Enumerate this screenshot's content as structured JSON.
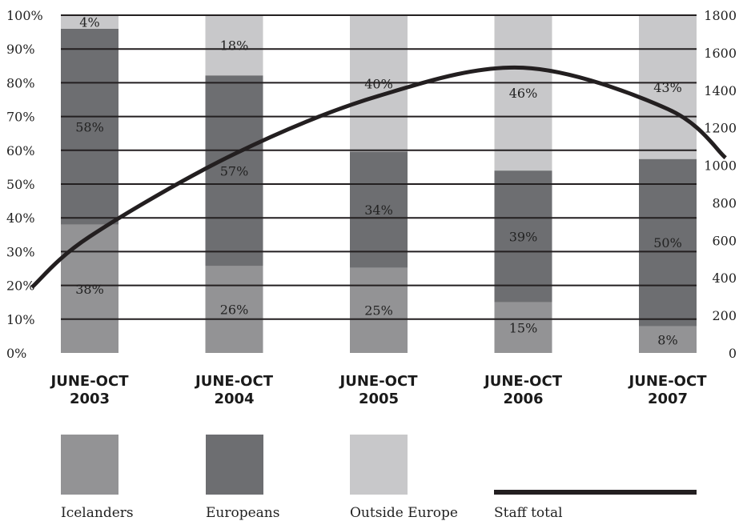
{
  "chart_data": {
    "type": "bar",
    "stacked": true,
    "percent_stacked": true,
    "categories": [
      [
        "JUNE-OCT",
        "2003"
      ],
      [
        "JUNE-OCT",
        "2004"
      ],
      [
        "JUNE-OCT",
        "2005"
      ],
      [
        "JUNE-OCT",
        "2006"
      ],
      [
        "JUNE-OCT",
        "2007"
      ]
    ],
    "series": [
      {
        "name": "Icelanders",
        "values": [
          38,
          26,
          25,
          15,
          8
        ],
        "labels": [
          "38%",
          "26%",
          "25%",
          "15%",
          "8%"
        ],
        "color": "#939395"
      },
      {
        "name": "Europeans",
        "values": [
          58,
          57,
          34,
          39,
          50
        ],
        "labels": [
          "58%",
          "57%",
          "34%",
          "39%",
          "50%"
        ],
        "color": "#6d6e71"
      },
      {
        "name": "Outside Europe",
        "values": [
          4,
          18,
          40,
          46,
          43
        ],
        "labels": [
          "4%",
          "18%",
          "40%",
          "46%",
          "43%"
        ],
        "color": "#c8c8ca"
      }
    ],
    "line_series": {
      "name": "Staff total",
      "axis": "right",
      "x": [
        -0.4,
        0,
        1,
        2,
        3,
        4,
        4.4
      ],
      "y": [
        350,
        620,
        1060,
        1370,
        1520,
        1300,
        1040
      ],
      "color": "#231f20"
    },
    "y_left": {
      "min": 0,
      "max": 100,
      "step": 10,
      "tick_labels": [
        "0%",
        "10%",
        "20%",
        "30%",
        "40%",
        "50%",
        "60%",
        "70%",
        "80%",
        "90%",
        "100%"
      ]
    },
    "y_right": {
      "min": 0,
      "max": 1800,
      "step": 200,
      "tick_labels": [
        "0",
        "200",
        "400",
        "600",
        "800",
        "1000",
        "1200",
        "1400",
        "1600",
        "1800"
      ]
    },
    "grid": true,
    "legend_position": "bottom"
  }
}
